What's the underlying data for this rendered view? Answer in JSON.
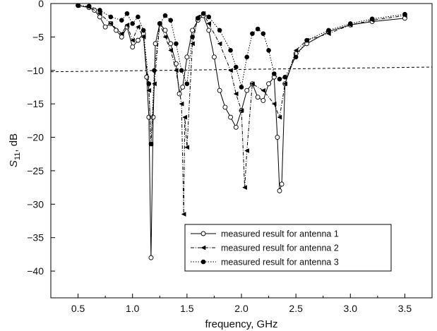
{
  "chart_data": {
    "type": "line",
    "xlabel": "frequency, GHz",
    "ylabel_main": "S",
    "ylabel_sub": "11",
    "ylabel_suffix": ", dB",
    "xlim": [
      0.25,
      3.75
    ],
    "ylim": [
      -44,
      0
    ],
    "xticks": [
      0.5,
      1.0,
      1.5,
      2.0,
      2.5,
      3.0,
      3.5
    ],
    "xtick_labels": [
      "0.5",
      "1.0",
      "1.5",
      "2.0",
      "2.5",
      "3.0",
      "3.5"
    ],
    "yticks": [
      0,
      -5,
      -10,
      -15,
      -20,
      -25,
      -30,
      -35,
      -40
    ],
    "ytick_labels": [
      "0",
      "−5",
      "−10",
      "−15",
      "−20",
      "−25",
      "−30",
      "−35",
      "−40"
    ],
    "grid": false,
    "legend_position": "lower-right",
    "reference_line": {
      "style": "dashed",
      "x": [
        0.25,
        3.75
      ],
      "y": [
        -10.2,
        -9.5
      ]
    },
    "series": [
      {
        "name": "measured result for antenna 1",
        "marker": "open-circle",
        "line_style": "solid",
        "x": [
          0.5,
          0.6,
          0.65,
          0.7,
          0.75,
          0.8,
          0.85,
          0.9,
          0.95,
          1.0,
          1.05,
          1.1,
          1.13,
          1.15,
          1.17,
          1.19,
          1.21,
          1.25,
          1.3,
          1.35,
          1.4,
          1.43,
          1.46,
          1.5,
          1.55,
          1.6,
          1.65,
          1.7,
          1.75,
          1.8,
          1.85,
          1.9,
          1.95,
          2.0,
          2.05,
          2.1,
          2.15,
          2.2,
          2.25,
          2.3,
          2.33,
          2.35,
          2.37,
          2.4,
          2.5,
          2.6,
          2.8,
          3.0,
          3.2,
          3.5
        ],
        "y": [
          -0.3,
          -0.6,
          -1.0,
          -2.0,
          -3.5,
          -3.0,
          -4.0,
          -5.0,
          -3.5,
          -6.5,
          -5.5,
          -4.5,
          -11.0,
          -17.0,
          -38.0,
          -17.0,
          -6.0,
          -3.0,
          -4.0,
          -6.0,
          -9.0,
          -13.5,
          -12.5,
          -8.0,
          -4.0,
          -2.5,
          -1.8,
          -4.0,
          -8.0,
          -13.0,
          -15.5,
          -17.0,
          -18.5,
          -16.0,
          -13.0,
          -12.0,
          -14.0,
          -14.5,
          -12.0,
          -11.0,
          -20.0,
          -28.0,
          -27.0,
          -12.0,
          -7.5,
          -6.0,
          -4.2,
          -3.2,
          -2.7,
          -2.2
        ]
      },
      {
        "name": "measured result for antenna 2",
        "marker": "filled-left-triangle",
        "line_style": "dash-dot",
        "x": [
          0.5,
          0.6,
          0.7,
          0.8,
          0.9,
          0.95,
          1.0,
          1.05,
          1.1,
          1.15,
          1.17,
          1.2,
          1.25,
          1.3,
          1.35,
          1.4,
          1.45,
          1.47,
          1.48,
          1.5,
          1.55,
          1.6,
          1.65,
          1.7,
          1.8,
          1.9,
          1.95,
          2.0,
          2.03,
          2.05,
          2.1,
          2.2,
          2.3,
          2.35,
          2.4,
          2.5,
          2.6,
          2.8,
          3.0,
          3.2,
          3.5
        ],
        "y": [
          -0.3,
          -0.5,
          -1.5,
          -3.0,
          -4.5,
          -3.2,
          -5.5,
          -3.5,
          -5.0,
          -13.0,
          -21.0,
          -12.0,
          -3.0,
          -5.0,
          -7.0,
          -10.0,
          -15.0,
          -31.5,
          -17.0,
          -21.5,
          -6.0,
          -2.0,
          -1.5,
          -3.0,
          -6.0,
          -10.0,
          -13.5,
          -16.0,
          -27.5,
          -22.0,
          -12.0,
          -13.0,
          -15.0,
          -17.0,
          -12.0,
          -7.0,
          -5.5,
          -4.5,
          -3.2,
          -2.5,
          -1.8
        ]
      },
      {
        "name": "measured result for antenna 3",
        "marker": "filled-circle",
        "line_style": "dotted",
        "x": [
          0.5,
          0.6,
          0.7,
          0.8,
          0.9,
          0.95,
          1.0,
          1.05,
          1.1,
          1.15,
          1.17,
          1.2,
          1.25,
          1.3,
          1.35,
          1.4,
          1.45,
          1.5,
          1.55,
          1.6,
          1.65,
          1.7,
          1.8,
          1.9,
          1.95,
          2.0,
          2.05,
          2.1,
          2.15,
          2.2,
          2.25,
          2.3,
          2.35,
          2.4,
          2.5,
          2.6,
          2.8,
          3.0,
          3.2,
          3.5
        ],
        "y": [
          -0.3,
          -0.4,
          -1.0,
          -2.0,
          -2.5,
          -1.5,
          -3.0,
          -2.0,
          -4.0,
          -12.0,
          -21.0,
          -10.0,
          -3.0,
          -1.8,
          -2.5,
          -6.0,
          -10.0,
          -12.0,
          -5.0,
          -2.2,
          -1.5,
          -2.0,
          -4.0,
          -7.0,
          -9.5,
          -12.5,
          -8.0,
          -4.5,
          -3.8,
          -4.5,
          -7.0,
          -10.5,
          -11.3,
          -11.0,
          -8.0,
          -5.5,
          -4.0,
          -3.0,
          -2.3,
          -1.6
        ]
      }
    ]
  }
}
